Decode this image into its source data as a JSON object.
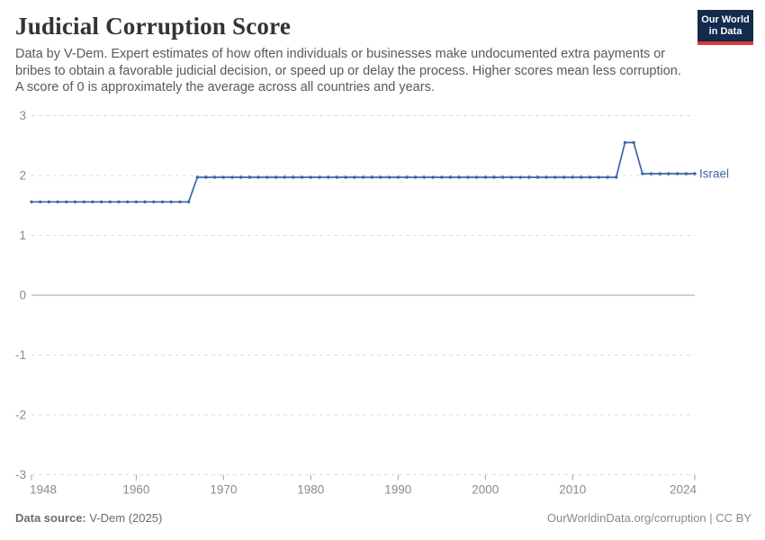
{
  "header": {
    "title": "Judicial Corruption Score",
    "subtitle": "Data by V-Dem. Expert estimates of how often individuals or businesses make undocumented extra payments or bribes to obtain a favorable judicial decision, or speed up or delay the process. Higher scores mean less corruption. A score of 0 is approximately the average across all countries and years."
  },
  "logo": {
    "line1": "Our World",
    "line2": "in Data",
    "bg_color": "#122b4e",
    "accent_color": "#d93a34"
  },
  "footer": {
    "source_label": "Data source:",
    "source_value": " V-Dem (2025)",
    "credit_text": "OurWorldinData.org/corruption | CC BY"
  },
  "colors": {
    "line": "#3d65a5",
    "grid": "#dcdcdc",
    "zero_line": "#a3a3a3",
    "axis_text": "#8b8b8b",
    "tick_mark": "#a3a3a3"
  },
  "chart_data": {
    "type": "line",
    "title": "Judicial Corruption Score",
    "xlabel": "",
    "ylabel": "",
    "xlim": [
      1948,
      2024
    ],
    "ylim": [
      -3,
      3
    ],
    "grid": "dashed-horizontal",
    "legend_position": "end-of-line-label",
    "xticks": [
      1948,
      1960,
      1970,
      1980,
      1990,
      2000,
      2010,
      2024
    ],
    "yticks": [
      3,
      2,
      1,
      0,
      -1,
      -2,
      -3
    ],
    "series": [
      {
        "name": "Israel",
        "points": [
          [
            1948,
            1.56
          ],
          [
            1949,
            1.56
          ],
          [
            1950,
            1.56
          ],
          [
            1951,
            1.56
          ],
          [
            1952,
            1.56
          ],
          [
            1953,
            1.56
          ],
          [
            1954,
            1.56
          ],
          [
            1955,
            1.56
          ],
          [
            1956,
            1.56
          ],
          [
            1957,
            1.56
          ],
          [
            1958,
            1.56
          ],
          [
            1959,
            1.56
          ],
          [
            1960,
            1.56
          ],
          [
            1961,
            1.56
          ],
          [
            1962,
            1.56
          ],
          [
            1963,
            1.56
          ],
          [
            1964,
            1.56
          ],
          [
            1965,
            1.56
          ],
          [
            1966,
            1.56
          ],
          [
            1967,
            1.97
          ],
          [
            1968,
            1.97
          ],
          [
            1969,
            1.97
          ],
          [
            1970,
            1.97
          ],
          [
            1971,
            1.97
          ],
          [
            1972,
            1.97
          ],
          [
            1973,
            1.97
          ],
          [
            1974,
            1.97
          ],
          [
            1975,
            1.97
          ],
          [
            1976,
            1.97
          ],
          [
            1977,
            1.97
          ],
          [
            1978,
            1.97
          ],
          [
            1979,
            1.97
          ],
          [
            1980,
            1.97
          ],
          [
            1981,
            1.97
          ],
          [
            1982,
            1.97
          ],
          [
            1983,
            1.97
          ],
          [
            1984,
            1.97
          ],
          [
            1985,
            1.97
          ],
          [
            1986,
            1.97
          ],
          [
            1987,
            1.97
          ],
          [
            1988,
            1.97
          ],
          [
            1989,
            1.97
          ],
          [
            1990,
            1.97
          ],
          [
            1991,
            1.97
          ],
          [
            1992,
            1.97
          ],
          [
            1993,
            1.97
          ],
          [
            1994,
            1.97
          ],
          [
            1995,
            1.97
          ],
          [
            1996,
            1.97
          ],
          [
            1997,
            1.97
          ],
          [
            1998,
            1.97
          ],
          [
            1999,
            1.97
          ],
          [
            2000,
            1.97
          ],
          [
            2001,
            1.97
          ],
          [
            2002,
            1.97
          ],
          [
            2003,
            1.97
          ],
          [
            2004,
            1.97
          ],
          [
            2005,
            1.97
          ],
          [
            2006,
            1.97
          ],
          [
            2007,
            1.97
          ],
          [
            2008,
            1.97
          ],
          [
            2009,
            1.97
          ],
          [
            2010,
            1.97
          ],
          [
            2011,
            1.97
          ],
          [
            2012,
            1.97
          ],
          [
            2013,
            1.97
          ],
          [
            2014,
            1.97
          ],
          [
            2015,
            1.97
          ],
          [
            2016,
            2.55
          ],
          [
            2017,
            2.55
          ],
          [
            2018,
            2.03
          ],
          [
            2019,
            2.03
          ],
          [
            2020,
            2.03
          ],
          [
            2021,
            2.03
          ],
          [
            2022,
            2.03
          ],
          [
            2023,
            2.03
          ],
          [
            2024,
            2.03
          ]
        ]
      }
    ]
  }
}
